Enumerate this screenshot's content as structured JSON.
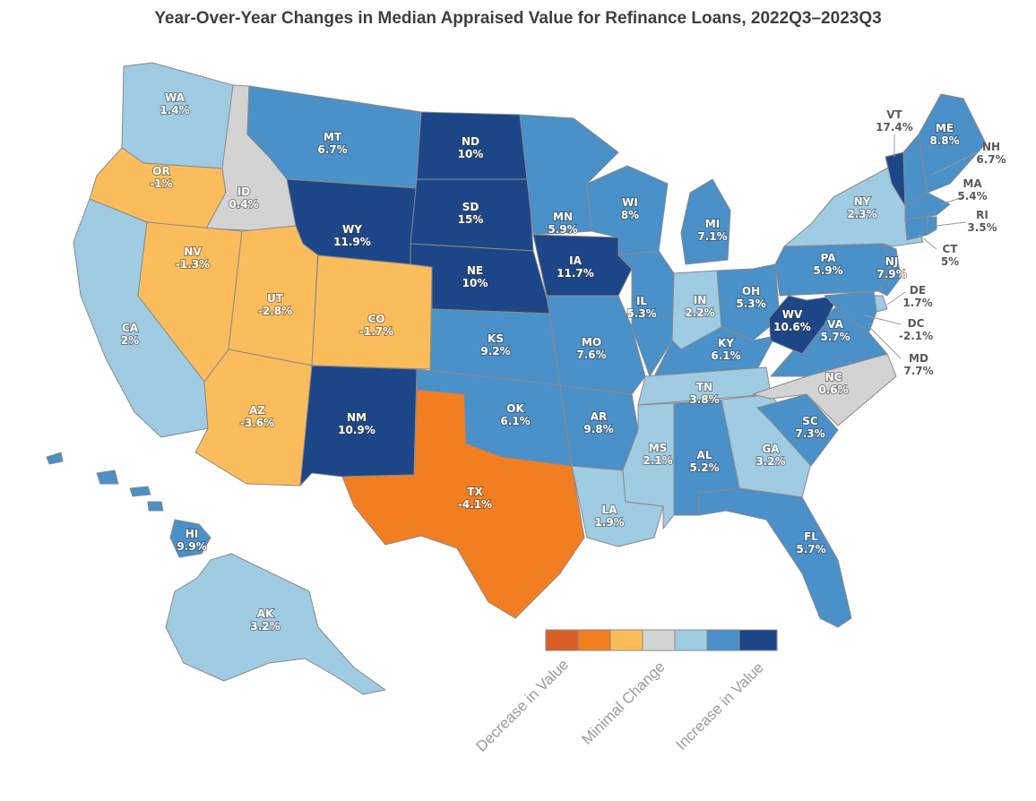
{
  "title": "Year-Over-Year Changes in Median Appraised Value for Refinance Loans, 2022Q3–2023Q3",
  "colors": {
    "dec_strong": "#d95f27",
    "dec_mid": "#f27e22",
    "dec_light": "#fbbd5b",
    "minimal": "#d3d3d3",
    "inc_light": "#9fcbe3",
    "inc_mid": "#4a90c9",
    "inc_strong": "#1d4689"
  },
  "states": {
    "WA": {
      "abbr": "WA",
      "value": "1.4%"
    },
    "OR": {
      "abbr": "OR",
      "value": "-1%"
    },
    "CA": {
      "abbr": "CA",
      "value": "2%"
    },
    "ID": {
      "abbr": "ID",
      "value": "0.4%"
    },
    "NV": {
      "abbr": "NV",
      "value": "-1.3%"
    },
    "UT": {
      "abbr": "UT",
      "value": "-2.8%"
    },
    "AZ": {
      "abbr": "AZ",
      "value": "-3.6%"
    },
    "MT": {
      "abbr": "MT",
      "value": "6.7%"
    },
    "WY": {
      "abbr": "WY",
      "value": "11.9%"
    },
    "CO": {
      "abbr": "CO",
      "value": "-1.7%"
    },
    "NM": {
      "abbr": "NM",
      "value": "10.9%"
    },
    "ND": {
      "abbr": "ND",
      "value": "10%"
    },
    "SD": {
      "abbr": "SD",
      "value": "15%"
    },
    "NE": {
      "abbr": "NE",
      "value": "10%"
    },
    "KS": {
      "abbr": "KS",
      "value": "9.2%"
    },
    "OK": {
      "abbr": "OK",
      "value": "6.1%"
    },
    "TX": {
      "abbr": "TX",
      "value": "-4.1%"
    },
    "MN": {
      "abbr": "MN",
      "value": "5.9%"
    },
    "IA": {
      "abbr": "IA",
      "value": "11.7%"
    },
    "MO": {
      "abbr": "MO",
      "value": "7.6%"
    },
    "AR": {
      "abbr": "AR",
      "value": "9.8%"
    },
    "LA": {
      "abbr": "LA",
      "value": "1.9%"
    },
    "WI": {
      "abbr": "WI",
      "value": "8%"
    },
    "IL": {
      "abbr": "IL",
      "value": "5.3%"
    },
    "MI": {
      "abbr": "MI",
      "value": "7.1%"
    },
    "IN": {
      "abbr": "IN",
      "value": "2.2%"
    },
    "OH": {
      "abbr": "OH",
      "value": "5.3%"
    },
    "KY": {
      "abbr": "KY",
      "value": "6.1%"
    },
    "TN": {
      "abbr": "TN",
      "value": "3.8%"
    },
    "MS": {
      "abbr": "MS",
      "value": "2.1%"
    },
    "AL": {
      "abbr": "AL",
      "value": "5.2%"
    },
    "GA": {
      "abbr": "GA",
      "value": "3.2%"
    },
    "FL": {
      "abbr": "FL",
      "value": "5.7%"
    },
    "SC": {
      "abbr": "SC",
      "value": "7.3%"
    },
    "NC": {
      "abbr": "NC",
      "value": "0.6%"
    },
    "VA": {
      "abbr": "VA",
      "value": "5.7%"
    },
    "WV": {
      "abbr": "WV",
      "value": "10.6%"
    },
    "PA": {
      "abbr": "PA",
      "value": "5.9%"
    },
    "NY": {
      "abbr": "NY",
      "value": "2.3%"
    },
    "NJ": {
      "abbr": "NJ",
      "value": "7.9%"
    },
    "DE": {
      "abbr": "DE",
      "value": "1.7%"
    },
    "DC": {
      "abbr": "DC",
      "value": "-2.1%"
    },
    "MD": {
      "abbr": "MD",
      "value": "7.7%"
    },
    "VT": {
      "abbr": "VT",
      "value": "17.4%"
    },
    "ME": {
      "abbr": "ME",
      "value": "8.8%"
    },
    "NH": {
      "abbr": "NH",
      "value": "6.7%"
    },
    "MA": {
      "abbr": "MA",
      "value": "5.4%"
    },
    "RI": {
      "abbr": "RI",
      "value": "3.5%"
    },
    "CT": {
      "abbr": "CT",
      "value": "5%"
    },
    "AK": {
      "abbr": "AK",
      "value": "3.2%"
    },
    "HI": {
      "abbr": "HI",
      "value": "9.9%"
    }
  },
  "legend": {
    "decrease": "Decrease in Value",
    "minimal": "Minimal Change",
    "increase": "Increase in Value"
  }
}
